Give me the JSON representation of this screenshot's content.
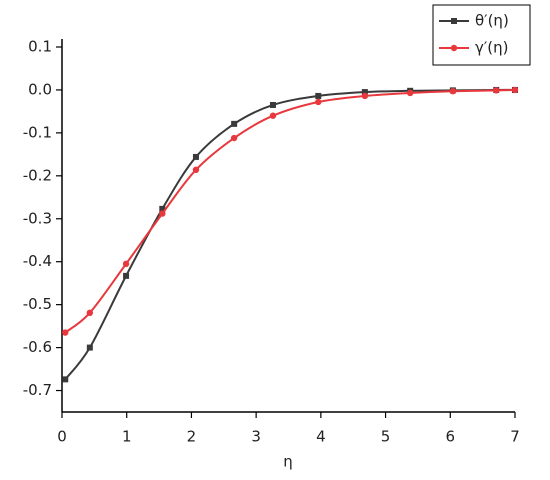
{
  "chart_data": {
    "type": "line",
    "x_label": "η",
    "xlim": [
      0,
      7
    ],
    "xticks": [
      0,
      1,
      2,
      3,
      4,
      5,
      6,
      7
    ],
    "ylim": [
      -0.75,
      0.1
    ],
    "yticks": [
      0.1,
      {
        "value": 0,
        "label": "0.0"
      },
      -0.1,
      -0.2,
      -0.3,
      -0.4,
      -0.5,
      -0.6,
      -0.7
    ],
    "legend": "top-right",
    "series": [
      {
        "name": "θ′(η)",
        "color": "#3a3a3a",
        "marker": "square",
        "x": [
          0.05,
          0.43,
          0.99,
          1.55,
          2.07,
          2.66,
          3.26,
          3.96,
          4.68,
          5.38,
          6.04,
          6.71,
          7.0
        ],
        "values": [
          -0.674,
          -0.6,
          -0.433,
          -0.277,
          -0.156,
          -0.079,
          -0.035,
          -0.014,
          -0.005,
          -0.002,
          -0.001,
          0,
          0
        ]
      },
      {
        "name": "γ′(η)",
        "color": "#e8383d",
        "marker": "circle",
        "x": [
          0.05,
          0.43,
          0.99,
          1.55,
          2.07,
          2.66,
          3.26,
          3.96,
          4.68,
          5.38,
          6.04,
          6.71,
          7.0
        ],
        "values": [
          -0.565,
          -0.519,
          -0.405,
          -0.288,
          -0.186,
          -0.112,
          -0.06,
          -0.028,
          -0.014,
          -0.007,
          -0.003,
          -0.001,
          0
        ]
      }
    ]
  }
}
